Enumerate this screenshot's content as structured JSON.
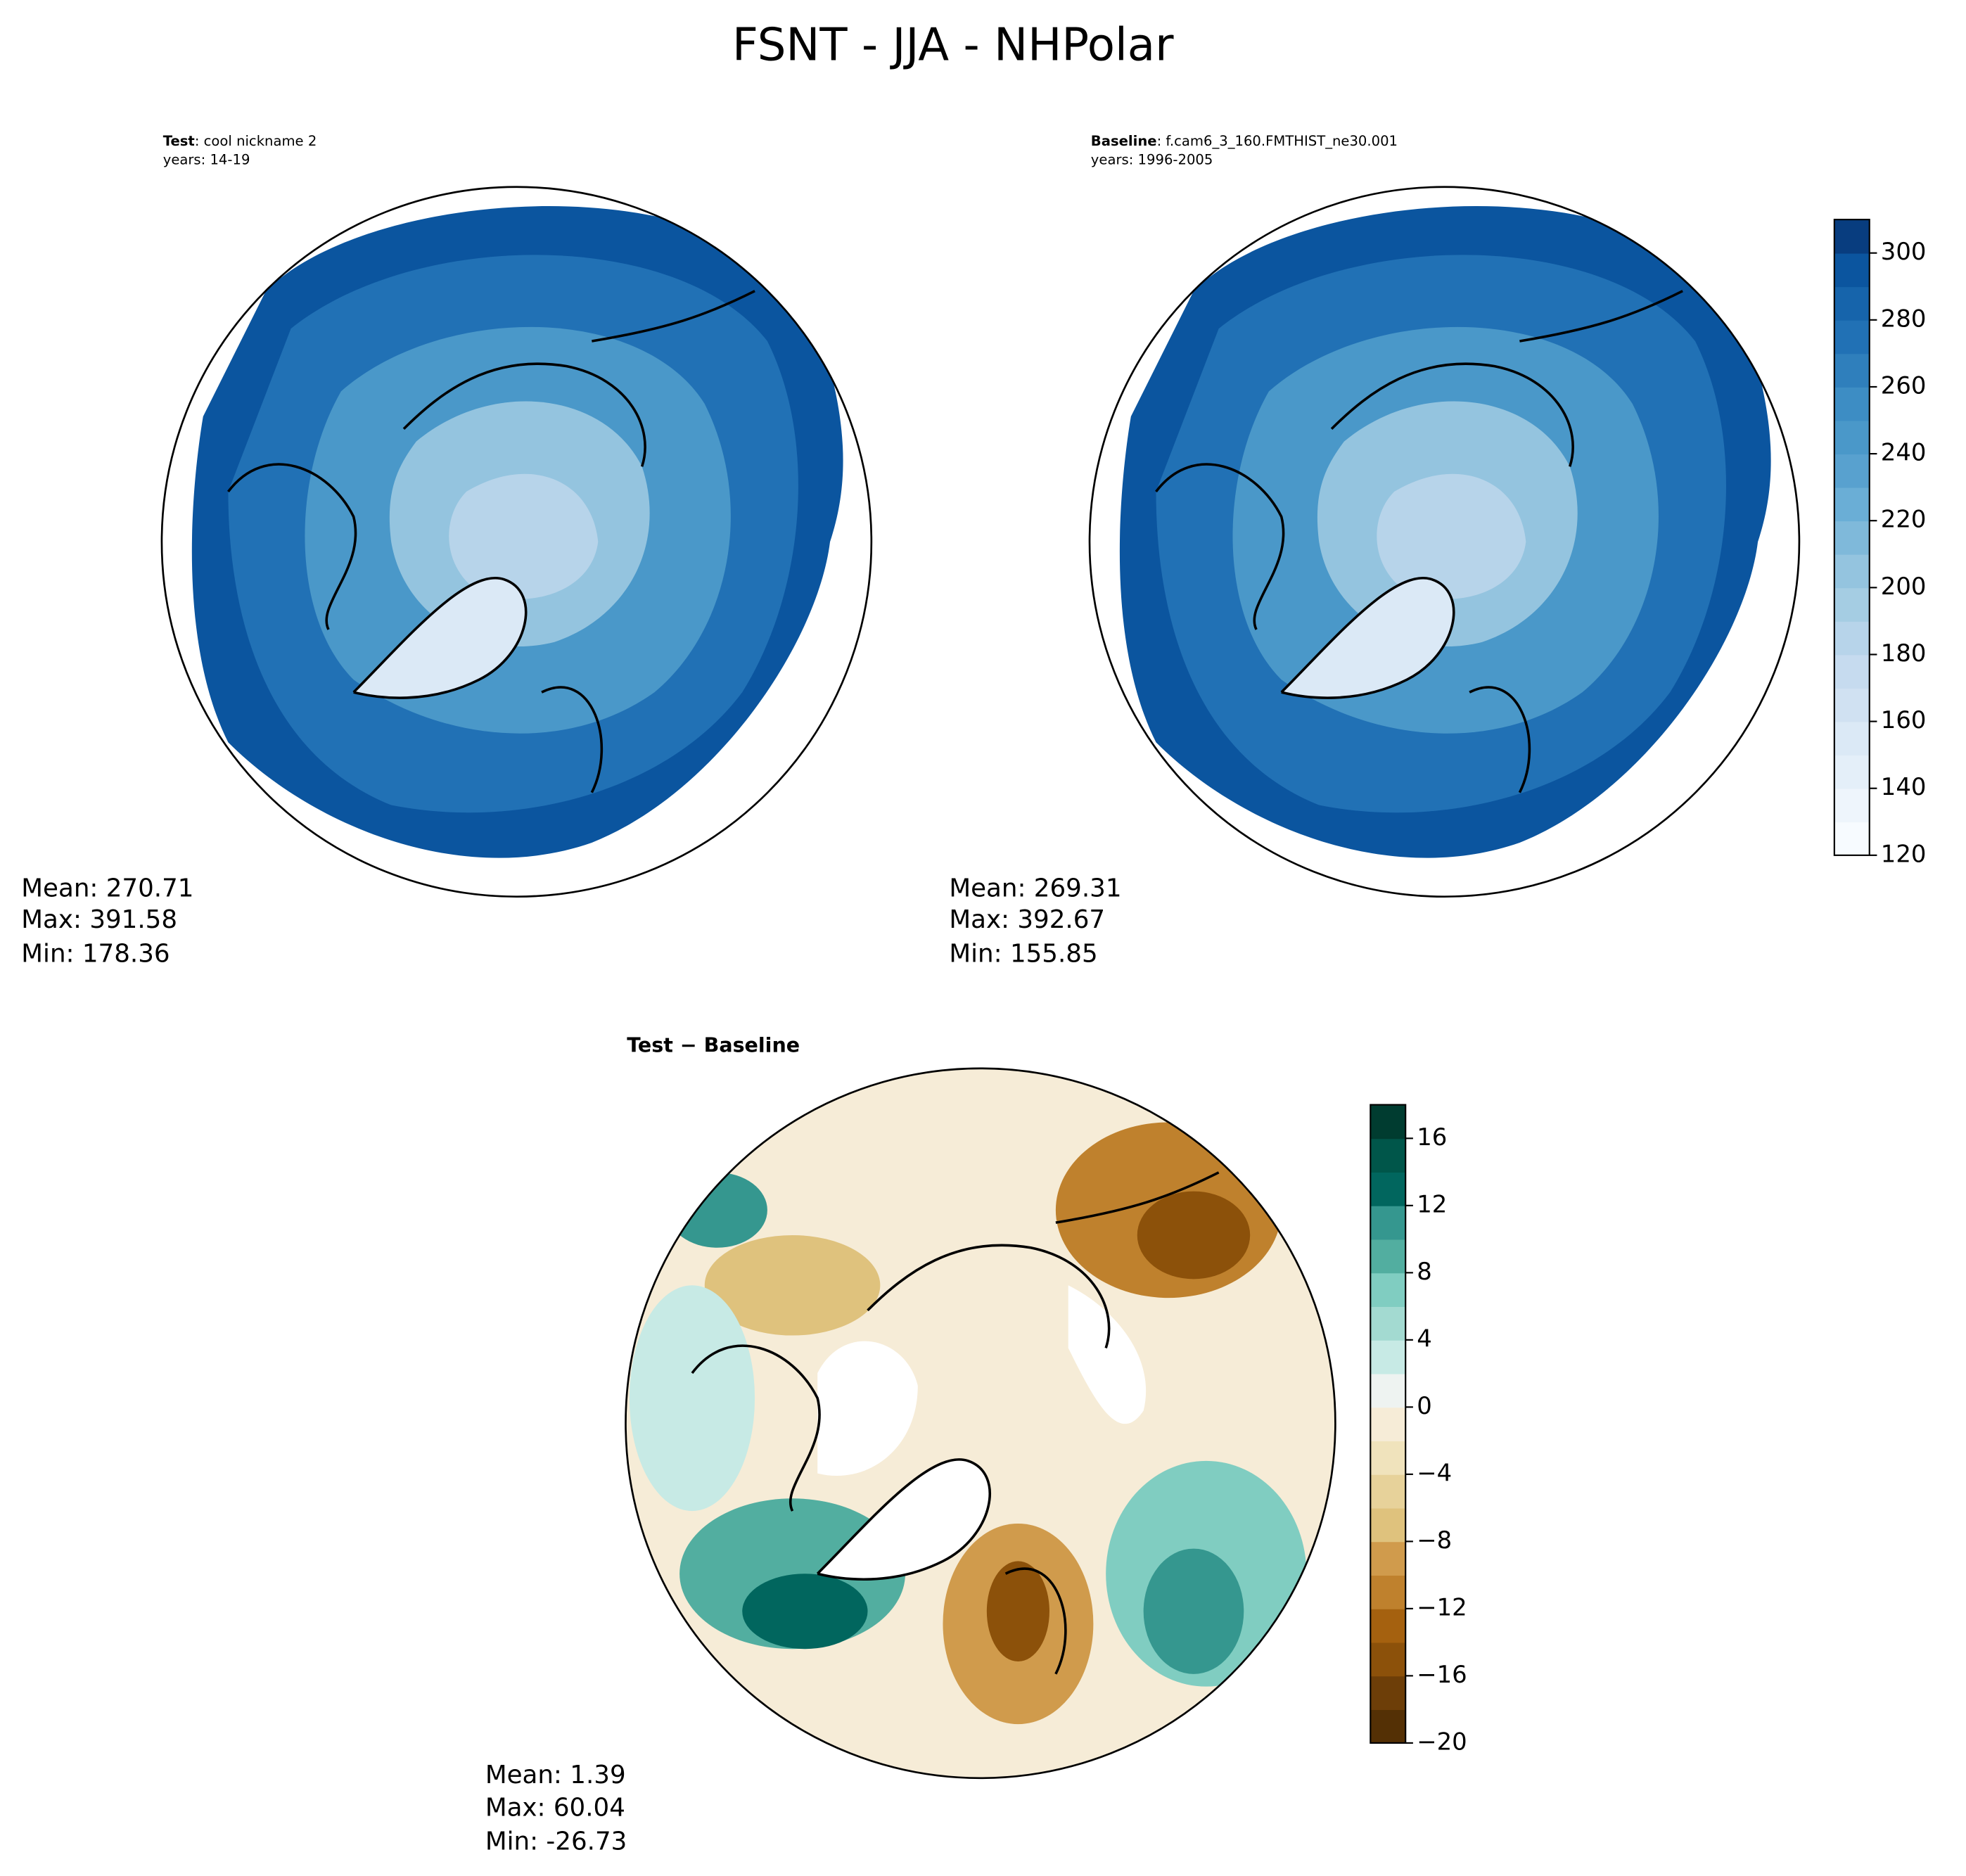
{
  "figure": {
    "title": "FSNT - JJA - NHPolar",
    "panels": [
      {
        "title_bold": "Test",
        "title_rest": ": cool nickname 2",
        "years": "years: 14-19",
        "stats": [
          "Mean: 270.71",
          "Max: 391.58",
          "Min: 178.36"
        ]
      },
      {
        "title_bold": "Baseline",
        "title_rest": ": f.cam6_3_160.FMTHIST_ne30.001",
        "years": "years: 1996-2005",
        "stats": [
          "Mean: 269.31",
          "Max: 392.67",
          "Min: 155.85"
        ]
      },
      {
        "title_bold": "Test − Baseline",
        "stats": [
          "Mean:  1.39",
          "Max: 60.04",
          "Min: -26.73"
        ]
      }
    ],
    "colorbars": [
      {
        "lim": [
          120,
          310
        ],
        "ticks": [
          120,
          140,
          160,
          180,
          200,
          220,
          240,
          260,
          280,
          300
        ],
        "colors": [
          "#f7fbff",
          "#eef5fc",
          "#e4eff9",
          "#dbe9f6",
          "#d0e1f2",
          "#c6dbef",
          "#b7d4ea",
          "#a5cde3",
          "#94c4df",
          "#7fb9da",
          "#6aaed6",
          "#58a1cf",
          "#4a98c9",
          "#3d8dc4",
          "#2f7fbc",
          "#2171b5",
          "#1664ab",
          "#0b559f",
          "#083d7f"
        ]
      },
      {
        "lim": [
          -20,
          18
        ],
        "ticks": [
          {
            "value": -20,
            "label": "−20"
          },
          {
            "value": -16,
            "label": "−16"
          },
          {
            "value": -12,
            "label": "−12"
          },
          {
            "value": -8,
            "label": "−8"
          },
          {
            "value": -4,
            "label": "−4"
          },
          0,
          4,
          8,
          12,
          16
        ],
        "colors": [
          "#543005",
          "#6d3e08",
          "#8c510a",
          "#a5610f",
          "#bf812d",
          "#d09b4c",
          "#dfc27d",
          "#e7d29a",
          "#f0e3bc",
          "#f6ecd7",
          "#eef3f1",
          "#c7eae5",
          "#a3dad1",
          "#80cdc1",
          "#52aea0",
          "#35978f",
          "#01665e",
          "#00564a",
          "#003c30"
        ]
      }
    ]
  }
}
